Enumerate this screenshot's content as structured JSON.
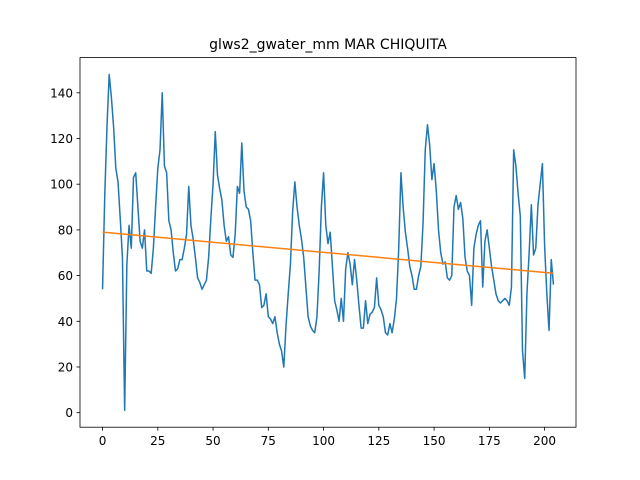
{
  "chart_data": {
    "type": "line",
    "title": "glws2_gwater_mm MAR CHIQUITA",
    "xlim": [
      -10.2,
      214.2
    ],
    "ylim": [
      -6.35,
      155.4
    ],
    "xticks": [
      0,
      25,
      50,
      75,
      100,
      125,
      150,
      175,
      200
    ],
    "yticks": [
      0,
      20,
      40,
      60,
      80,
      100,
      120,
      140
    ],
    "series": [
      {
        "color": "#1f77b4",
        "x": [
          0,
          1,
          2,
          3,
          4,
          5,
          6,
          7,
          8,
          9,
          10,
          11,
          12,
          13,
          14,
          15,
          16,
          17,
          18,
          19,
          20,
          21,
          22,
          23,
          24,
          25,
          26,
          27,
          28,
          29,
          30,
          31,
          32,
          33,
          34,
          35,
          36,
          37,
          38,
          39,
          40,
          41,
          42,
          43,
          44,
          45,
          46,
          47,
          48,
          49,
          50,
          51,
          52,
          53,
          54,
          55,
          56,
          57,
          58,
          59,
          60,
          61,
          62,
          63,
          64,
          65,
          66,
          67,
          68,
          69,
          70,
          71,
          72,
          73,
          74,
          75,
          76,
          77,
          78,
          79,
          80,
          81,
          82,
          83,
          84,
          85,
          86,
          87,
          88,
          89,
          90,
          91,
          92,
          93,
          94,
          95,
          96,
          97,
          98,
          99,
          100,
          101,
          102,
          103,
          104,
          105,
          106,
          107,
          108,
          109,
          110,
          111,
          112,
          113,
          114,
          115,
          116,
          117,
          118,
          119,
          120,
          121,
          122,
          123,
          124,
          125,
          126,
          127,
          128,
          129,
          130,
          131,
          132,
          133,
          134,
          135,
          136,
          137,
          138,
          139,
          140,
          141,
          142,
          143,
          144,
          145,
          146,
          147,
          148,
          149,
          150,
          151,
          152,
          153,
          154,
          155,
          156,
          157,
          158,
          159,
          160,
          161,
          162,
          163,
          164,
          165,
          166,
          167,
          168,
          169,
          170,
          171,
          172,
          173,
          174,
          175,
          176,
          177,
          178,
          179,
          180,
          181,
          182,
          183,
          184,
          185,
          186,
          187,
          188,
          189,
          190,
          191,
          192,
          193,
          194,
          195,
          196,
          197,
          198,
          199,
          200,
          201,
          202,
          203,
          204
        ],
        "values": [
          54,
          95,
          125,
          148,
          138,
          125,
          107,
          101,
          85,
          68,
          1,
          65,
          82,
          72,
          103,
          105,
          90,
          75,
          72,
          80,
          62,
          62,
          61,
          72,
          90,
          107,
          115,
          140,
          108,
          105,
          84,
          80,
          70,
          62,
          63,
          67,
          67,
          72,
          78,
          99,
          82,
          76,
          68,
          59,
          57,
          54,
          56,
          58,
          68,
          85,
          100,
          123,
          104,
          98,
          93,
          82,
          75,
          77,
          69,
          68,
          78,
          99,
          96,
          118,
          97,
          90,
          89,
          84,
          70,
          58,
          58,
          56,
          46,
          47,
          52,
          42,
          41,
          39,
          42,
          35,
          30,
          27,
          20,
          38,
          52,
          65,
          88,
          101,
          90,
          82,
          76,
          68,
          55,
          42,
          38,
          36,
          35,
          42,
          62,
          90,
          105,
          82,
          74,
          79,
          64,
          49,
          45,
          40,
          50,
          40,
          63,
          70,
          65,
          56,
          67,
          58,
          47,
          37,
          37,
          49,
          39,
          43,
          44,
          46,
          59,
          47,
          45,
          42,
          35,
          34,
          39,
          35,
          41,
          50,
          72,
          105,
          90,
          79,
          72,
          64,
          60,
          54,
          54,
          60,
          64,
          83,
          115,
          126,
          117,
          102,
          109,
          97,
          80,
          70,
          65,
          66,
          59,
          58,
          60,
          90,
          95,
          89,
          92,
          85,
          68,
          62,
          60,
          47,
          72,
          78,
          82,
          84,
          55,
          75,
          80,
          72,
          64,
          58,
          52,
          49,
          48,
          49,
          50,
          49,
          47,
          55,
          115,
          108,
          96,
          86,
          27,
          15,
          52,
          70,
          91,
          69,
          72,
          91,
          100,
          109,
          73,
          52,
          36,
          67,
          56
        ]
      },
      {
        "color": "#ff7f0e",
        "x": [
          0,
          204
        ],
        "values": [
          79,
          61
        ]
      }
    ]
  }
}
